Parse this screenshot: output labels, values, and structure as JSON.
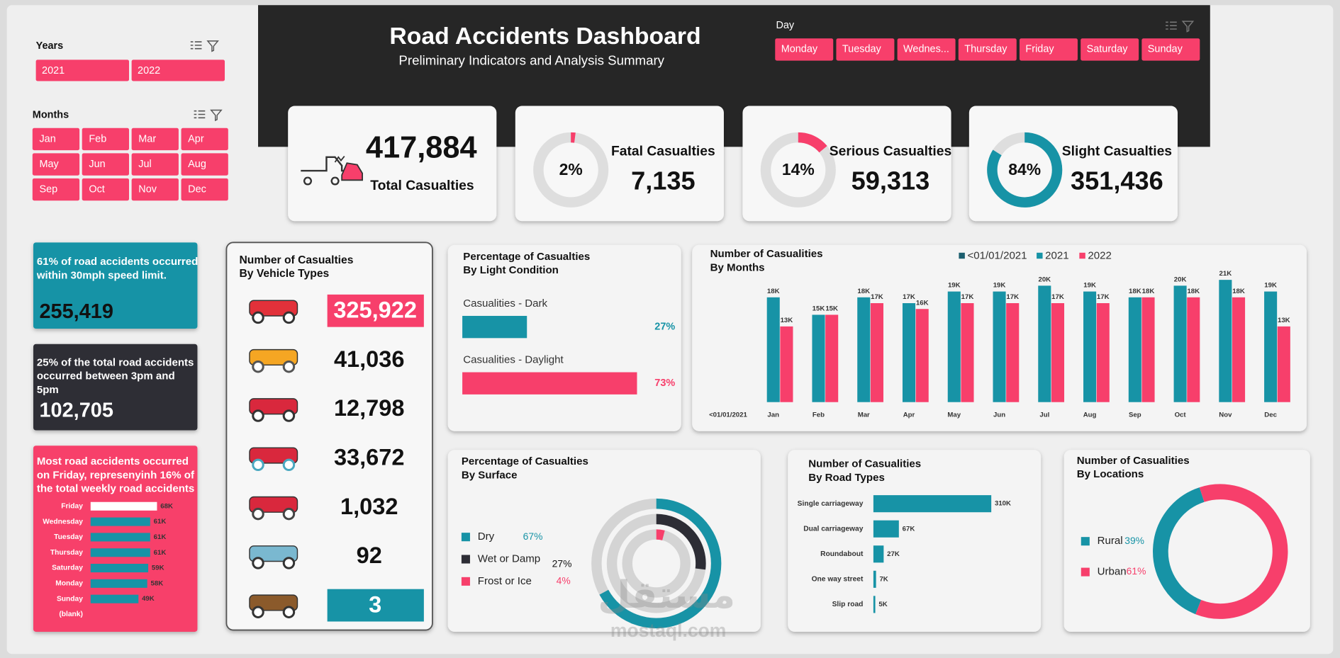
{
  "header": {
    "title": "Road Accidents Dashboard",
    "subtitle": "Preliminary Indicators and Analysis Summary"
  },
  "slicers": {
    "years": {
      "title": "Years",
      "items": [
        "2021",
        "2022"
      ]
    },
    "months": {
      "title": "Months",
      "items": [
        "Jan",
        "Feb",
        "Mar",
        "Apr",
        "May",
        "Jun",
        "Jul",
        "Aug",
        "Sep",
        "Oct",
        "Nov",
        "Dec"
      ]
    },
    "days": {
      "title": "Day",
      "items": [
        "Monday",
        "Tuesday",
        "Wednes...",
        "Thursday",
        "Friday",
        "Saturday",
        "Sunday"
      ]
    }
  },
  "kpis": [
    {
      "label": "Total Casualties",
      "value": "417,884"
    },
    {
      "label": "Fatal Casualties",
      "value": "7,135",
      "percent": 2,
      "percent_label": "2%",
      "color": "#f73f6b"
    },
    {
      "label": "Serious Casualties",
      "value": "59,313",
      "percent": 14,
      "percent_label": "14%",
      "color": "#f73f6b"
    },
    {
      "label": "Slight Casualties",
      "value": "351,436",
      "percent": 84,
      "percent_label": "84%",
      "color": "#1793a6"
    }
  ],
  "insights": [
    {
      "text": [
        "61% of road accidents occurred",
        "within 30mph speed limit."
      ],
      "value": "255,419"
    },
    {
      "text": [
        "25% of the total road accidents",
        "occurred between 3pm and",
        "5pm"
      ],
      "value": "102,705"
    },
    {
      "text": [
        "Most road accidents occurred",
        "on Friday, represenyinh 16% of",
        "the total weekly road accidents"
      ]
    }
  ],
  "vehicle_types": {
    "title": "Number of Casualties",
    "subtitle": "By Vehicle Types",
    "values": [
      "325,922",
      "41,036",
      "12,798",
      "33,672",
      "1,032",
      "92",
      "3"
    ],
    "highlight_colors": [
      "#f73f6b",
      null,
      null,
      null,
      null,
      null,
      "#1793a6"
    ]
  },
  "watermark": [
    "مستقل",
    "mostaql.com"
  ],
  "chart_data": [
    {
      "type": "bar",
      "orientation": "horizontal",
      "categories": [
        "Friday",
        "Wednesday",
        "Tuesday",
        "Thursday",
        "Saturday",
        "Monday",
        "Sunday",
        "(blank)"
      ],
      "values": [
        68000,
        61000,
        61000,
        61000,
        59000,
        58000,
        49000,
        null
      ],
      "value_labels": [
        "68K",
        "61K",
        "61K",
        "61K",
        "59K",
        "58K",
        "49K",
        null
      ],
      "colors": [
        "#ffffff",
        "#1793a6",
        "#1793a6",
        "#1793a6",
        "#1793a6",
        "#1793a6",
        "#1793a6",
        "#1793a6"
      ],
      "xlim": [
        0,
        70000
      ]
    },
    {
      "type": "bar",
      "orientation": "horizontal",
      "title": "Percentage of Casualties",
      "subtitle": "By Light Condition",
      "categories": [
        "Casualities - Dark",
        "Casualities - Daylight"
      ],
      "values": [
        27,
        73
      ],
      "value_labels": [
        "27%",
        "73%"
      ],
      "colors": [
        "#1793a6",
        "#f73f6b"
      ],
      "xlim": [
        0,
        75
      ]
    },
    {
      "type": "bar",
      "orientation": "vertical",
      "title": "Number of Casualities",
      "subtitle": "By Months",
      "categories": [
        "<01/01/2021",
        "Jan",
        "Feb",
        "Mar",
        "Apr",
        "May",
        "Jun",
        "Jul",
        "Aug",
        "Sep",
        "Oct",
        "Nov",
        "Dec"
      ],
      "series": [
        {
          "name": "<01/01/2021",
          "color": "#1b5e6e",
          "values": [
            null,
            null,
            null,
            null,
            null,
            null,
            null,
            null,
            null,
            null,
            null,
            null,
            null
          ]
        },
        {
          "name": "2021",
          "color": "#1793a6",
          "values": [
            null,
            18000,
            15000,
            18000,
            17000,
            19000,
            19000,
            20000,
            19000,
            18000,
            20000,
            21000,
            19000
          ],
          "value_labels": [
            null,
            "18K",
            "15K",
            "18K",
            "17K",
            "19K",
            "19K",
            "20K",
            "19K",
            "18K",
            "20K",
            "21K",
            "19K"
          ]
        },
        {
          "name": "2022",
          "color": "#f73f6b",
          "values": [
            null,
            13000,
            15000,
            17000,
            16000,
            17000,
            17000,
            17000,
            17000,
            18000,
            18000,
            18000,
            13000
          ],
          "value_labels": [
            null,
            "13K",
            "15K",
            "17K",
            "16K",
            "17K",
            "17K",
            "17K",
            "17K",
            "18K",
            "18K",
            "18K",
            "13K"
          ]
        }
      ],
      "ylim": [
        0,
        22000
      ],
      "legend": "top"
    },
    {
      "type": "rings",
      "title": "Percentage of Casualties",
      "subtitle": "By Surface",
      "categories": [
        "Dry",
        "Wet or Damp",
        "Frost or Ice"
      ],
      "values": [
        67,
        27,
        4
      ],
      "value_labels": [
        "67%",
        "27%",
        "4%"
      ],
      "colors": [
        "#1793a6",
        "#2d2d35",
        "#f73f6b"
      ]
    },
    {
      "type": "bar",
      "orientation": "horizontal",
      "title": "Number of Casualities",
      "subtitle": "By Road Types",
      "categories": [
        "Single carriageway",
        "Dual carriageway",
        "Roundabout",
        "One way street",
        "Slip road"
      ],
      "values": [
        310000,
        67000,
        27000,
        7000,
        5000
      ],
      "value_labels": [
        "310K",
        "67K",
        "27K",
        "7K",
        "5K"
      ],
      "colors": [
        "#1793a6",
        "#1793a6",
        "#1793a6",
        "#1793a6",
        "#1793a6"
      ],
      "xlim": [
        0,
        400000
      ]
    },
    {
      "type": "donut",
      "title": "Number of Casualities",
      "subtitle": "By Locations",
      "categories": [
        "Rural",
        "Urban"
      ],
      "values": [
        39,
        61
      ],
      "value_labels": [
        "39%",
        "61%"
      ],
      "colors": [
        "#1793a6",
        "#f73f6b"
      ]
    }
  ]
}
